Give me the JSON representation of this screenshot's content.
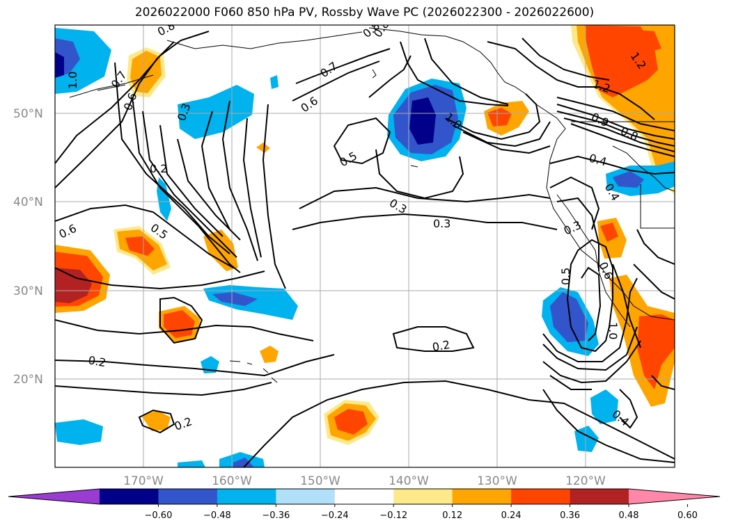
{
  "title": "2026022000 F060 850 hPa PV, Rossby Wave PC (2026022300 - 2026022600)",
  "lat_labels": [
    "50°N",
    "40°N",
    "30°N",
    "20°N"
  ],
  "lon_labels": [
    "170°W",
    "160°W",
    "150°W",
    "140°W",
    "130°W",
    "120°W"
  ],
  "contour_labels": [
    "0.8",
    "0.7",
    "1.0",
    "0.6",
    "0.3",
    "0.2",
    "0.6",
    "0.5",
    "0.7",
    "0.6",
    "0.5",
    "0.3",
    "0.8",
    "1.0",
    "1.2",
    "1.2",
    "0.9",
    "0.8",
    "0.4",
    "0.4",
    "0.3",
    "0.3",
    "0.5",
    "0.6",
    "1.0",
    "0.2",
    "0.2",
    "0.2",
    "0.4",
    "0.8"
  ],
  "colorbar": {
    "ticks": [
      "−0.60",
      "−0.48",
      "−0.36",
      "−0.24",
      "−0.12",
      "0.12",
      "0.24",
      "0.36",
      "0.48",
      "0.60"
    ],
    "colors": [
      "#9a3bd1",
      "#00008b",
      "#3355cc",
      "#00b2ee",
      "#b0e0fa",
      "#ffffff",
      "#fde98a",
      "#ffa500",
      "#ff4500",
      "#b22222",
      "#ff88aa"
    ]
  },
  "colors": {
    "neg_weak": "#b0e0fa",
    "neg_mid": "#00b2ee",
    "neg_strong": "#3355cc",
    "neg_max": "#00008b",
    "pos_weak": "#fde98a",
    "pos_mid": "#ffa500",
    "pos_strong": "#ff4500",
    "pos_max": "#b22222"
  }
}
